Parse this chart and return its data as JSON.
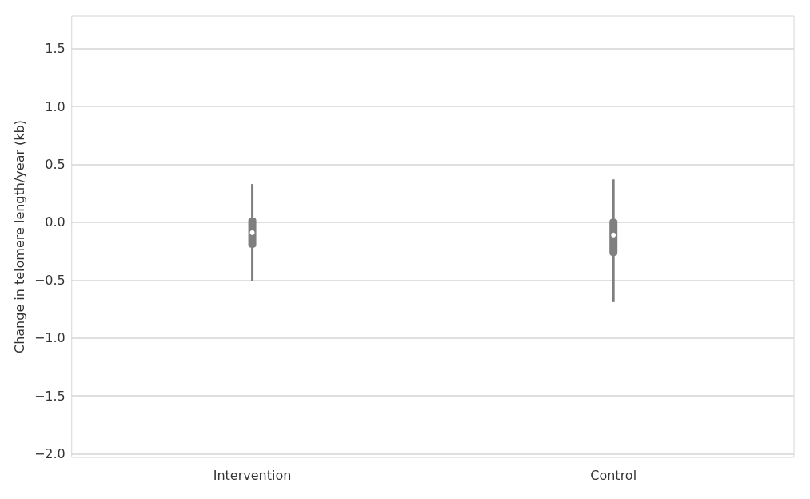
{
  "chart_data": {
    "type": "box",
    "ylabel": "Change in telomere length/year (kb)",
    "categories": [
      "Intervention",
      "Control"
    ],
    "series": [
      {
        "color": "#7f7f7f",
        "boxes": [
          {
            "low": -0.51,
            "q1": -0.22,
            "median": -0.09,
            "q3": 0.04,
            "high": 0.33
          },
          {
            "low": -0.69,
            "q1": -0.29,
            "median": -0.11,
            "q3": 0.03,
            "high": 0.37
          }
        ]
      }
    ],
    "ylim": [
      -2.03,
      1.78
    ],
    "yticks": [
      {
        "value": -2,
        "label": "−2.0"
      },
      {
        "value": -1.5,
        "label": "−1.5"
      },
      {
        "value": -1,
        "label": "−1.0"
      },
      {
        "value": -0.5,
        "label": "−0.5"
      },
      {
        "value": 0,
        "label": "0.0"
      },
      {
        "value": 0.5,
        "label": "0.5"
      },
      {
        "value": 1,
        "label": "1.0"
      },
      {
        "value": 1.5,
        "label": "1.5"
      }
    ],
    "grid": "y"
  }
}
